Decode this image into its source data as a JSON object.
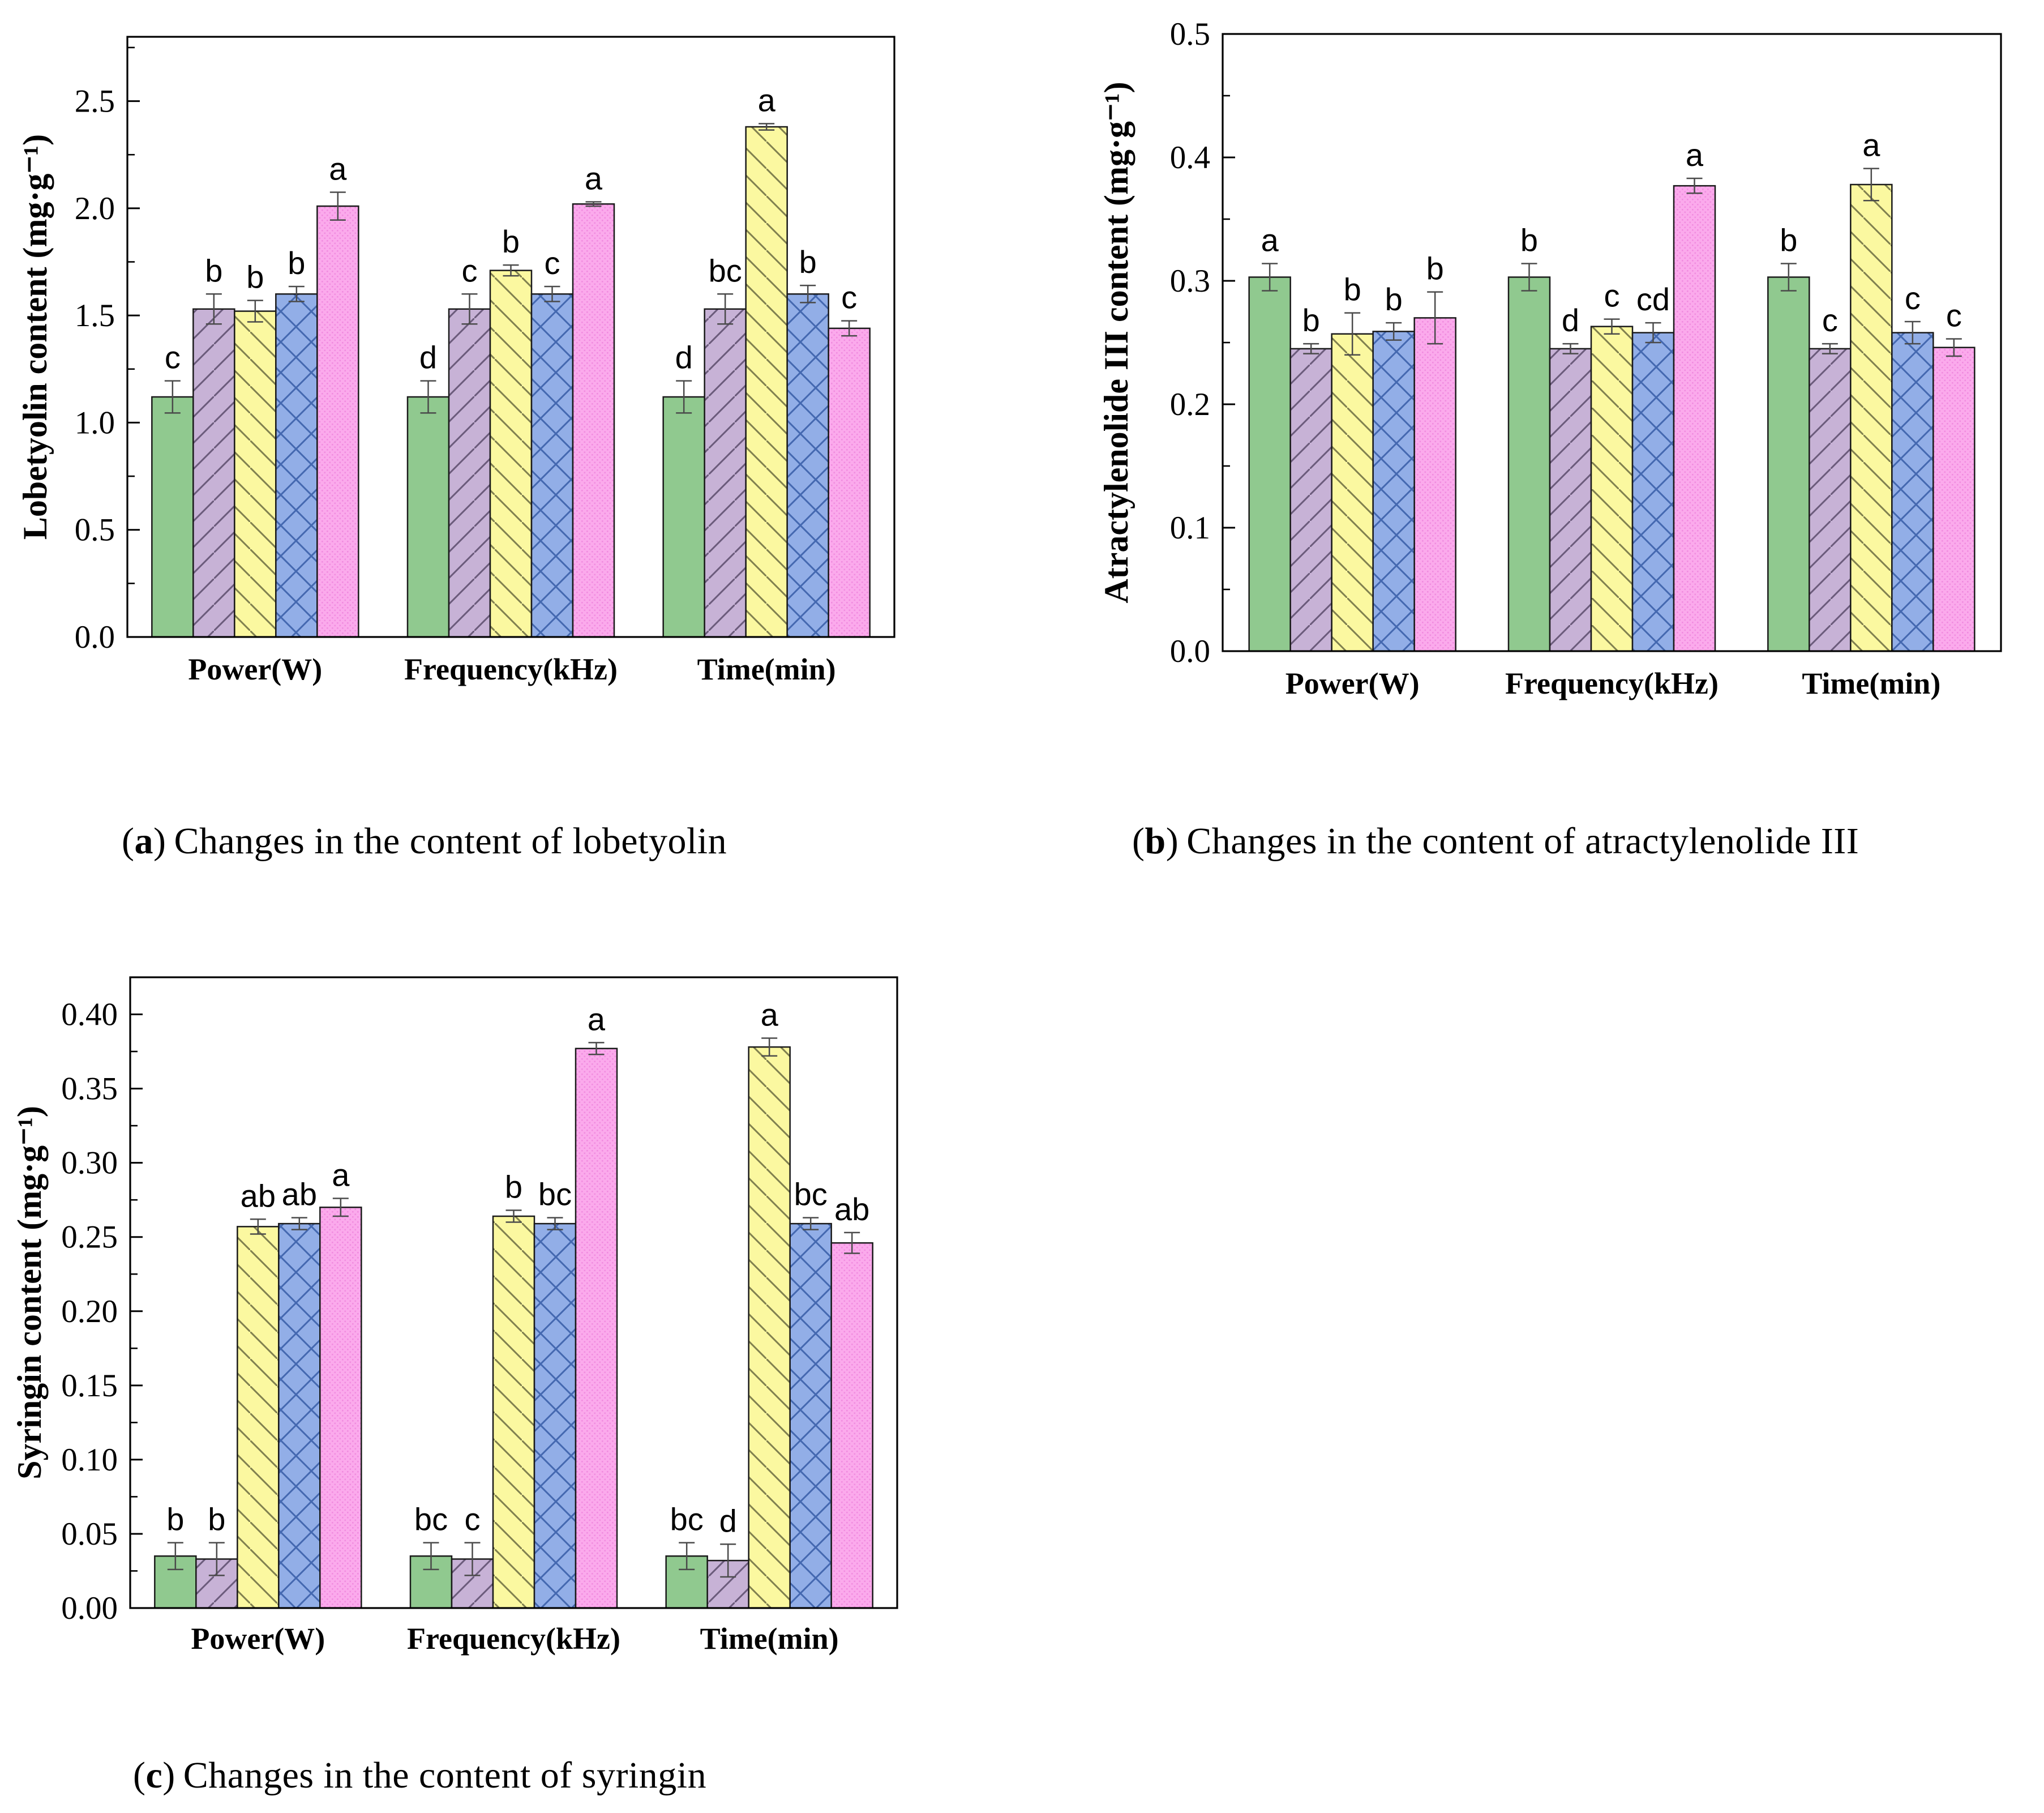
{
  "styles": {
    "background": "#ffffff",
    "axis_color": "#000000",
    "error_bar_color": "#4a4a4a",
    "letter_color": "#000000",
    "bar_green_fill": "#90C98F",
    "bar_purple_fill": "#C7B2D6",
    "bar_purple_line": "#6B5B7B",
    "bar_yellow_fill": "#FBF8A0",
    "bar_yellow_line": "#80804F",
    "bar_blue_fill": "#92AEE7",
    "bar_blue_line": "#4468B0",
    "bar_pink_fill": "#FBAAEC",
    "bar_pink_dot": "#F18CE0"
  },
  "captions": {
    "a": {
      "open": "(",
      "letter": "a",
      "close": ")",
      "text": "Changes in the content of lobetyolin"
    },
    "b": {
      "open": "(",
      "letter": "b",
      "close": ")",
      "text": "Changes in the content of atractylenolide III"
    },
    "c": {
      "open": "(",
      "letter": "c",
      "close": ")",
      "text": "Changes in the content of syringin"
    }
  },
  "chart_data": [
    {
      "id": "a",
      "type": "bar",
      "title": "",
      "ylabel": "Lobetyolin content (mg·g⁻¹)",
      "xlabel": "",
      "categories": [
        "Power(W)",
        "Frequency(kHz)",
        "Time(min)"
      ],
      "ylim": [
        0,
        2.8
      ],
      "yticks": [
        0.0,
        0.5,
        1.0,
        1.5,
        2.0,
        2.5
      ],
      "minor_step": 0.25,
      "tick_decimals": 1,
      "grid": false,
      "legend": "none",
      "series": [
        {
          "name": "green-solid",
          "values": [
            1.12,
            1.12,
            1.12
          ],
          "errors": [
            0.075,
            0.075,
            0.075
          ],
          "letters": [
            "c",
            "d",
            "d"
          ]
        },
        {
          "name": "purple-diagonal",
          "values": [
            1.53,
            1.53,
            1.53
          ],
          "errors": [
            0.07,
            0.07,
            0.07
          ],
          "letters": [
            "b",
            "c",
            "bc"
          ]
        },
        {
          "name": "yellow-diagonal",
          "values": [
            1.52,
            1.71,
            2.38
          ],
          "errors": [
            0.05,
            0.025,
            0.015
          ],
          "letters": [
            "b",
            "b",
            "a"
          ]
        },
        {
          "name": "blue-crosshatch",
          "values": [
            1.6,
            1.6,
            1.6
          ],
          "errors": [
            0.035,
            0.035,
            0.04
          ],
          "letters": [
            "b",
            "c",
            "b"
          ]
        },
        {
          "name": "pink-dotted",
          "values": [
            2.01,
            2.02,
            1.44
          ],
          "errors": [
            0.065,
            0.01,
            0.035
          ],
          "letters": [
            "a",
            "a",
            "c"
          ]
        }
      ]
    },
    {
      "id": "b",
      "type": "bar",
      "title": "",
      "ylabel": "Atractylenolide III content (mg·g⁻¹)",
      "xlabel": "",
      "categories": [
        "Power(W)",
        "Frequency(kHz)",
        "Time(min)"
      ],
      "ylim": [
        0,
        0.5
      ],
      "yticks": [
        0.0,
        0.1,
        0.2,
        0.3,
        0.4,
        0.5
      ],
      "minor_step": 0.05,
      "tick_decimals": 1,
      "grid": false,
      "legend": "none",
      "series": [
        {
          "name": "green-solid",
          "values": [
            0.303,
            0.303,
            0.303
          ],
          "errors": [
            0.011,
            0.011,
            0.011
          ],
          "letters": [
            "a",
            "b",
            "b"
          ]
        },
        {
          "name": "purple-diagonal",
          "values": [
            0.245,
            0.245,
            0.245
          ],
          "errors": [
            0.004,
            0.004,
            0.004
          ],
          "letters": [
            "b",
            "d",
            "c"
          ]
        },
        {
          "name": "yellow-diagonal",
          "values": [
            0.257,
            0.263,
            0.378
          ],
          "errors": [
            0.017,
            0.006,
            0.013
          ],
          "letters": [
            "b",
            "c",
            "a"
          ]
        },
        {
          "name": "blue-crosshatch",
          "values": [
            0.259,
            0.258,
            0.258
          ],
          "errors": [
            0.007,
            0.008,
            0.009
          ],
          "letters": [
            "b",
            "cd",
            "c"
          ]
        },
        {
          "name": "pink-dotted",
          "values": [
            0.27,
            0.377,
            0.246
          ],
          "errors": [
            0.021,
            0.006,
            0.007
          ],
          "letters": [
            "b",
            "a",
            "c"
          ]
        }
      ]
    },
    {
      "id": "c",
      "type": "bar",
      "title": "",
      "ylabel": "Syringin content (mg·g⁻¹)",
      "xlabel": "",
      "categories": [
        "Power(W)",
        "Frequency(kHz)",
        "Time(min)"
      ],
      "ylim": [
        0,
        0.425
      ],
      "yticks": [
        0.0,
        0.05,
        0.1,
        0.15,
        0.2,
        0.25,
        0.3,
        0.35,
        0.4
      ],
      "minor_step": 0.025,
      "tick_decimals": 2,
      "grid": false,
      "legend": "none",
      "series": [
        {
          "name": "green-solid",
          "values": [
            0.035,
            0.035,
            0.035
          ],
          "errors": [
            0.009,
            0.009,
            0.009
          ],
          "letters": [
            "b",
            "bc",
            "bc"
          ]
        },
        {
          "name": "purple-diagonal",
          "values": [
            0.033,
            0.033,
            0.032
          ],
          "errors": [
            0.011,
            0.011,
            0.011
          ],
          "letters": [
            "b",
            "c",
            "d"
          ]
        },
        {
          "name": "yellow-diagonal",
          "values": [
            0.257,
            0.264,
            0.378
          ],
          "errors": [
            0.005,
            0.004,
            0.006
          ],
          "letters": [
            "ab",
            "b",
            "a"
          ]
        },
        {
          "name": "blue-crosshatch",
          "values": [
            0.259,
            0.259,
            0.259
          ],
          "errors": [
            0.004,
            0.004,
            0.004
          ],
          "letters": [
            "ab",
            "bc",
            "bc"
          ]
        },
        {
          "name": "pink-dotted",
          "values": [
            0.27,
            0.377,
            0.246
          ],
          "errors": [
            0.006,
            0.004,
            0.007
          ],
          "letters": [
            "a",
            "a",
            "ab"
          ]
        }
      ]
    }
  ]
}
